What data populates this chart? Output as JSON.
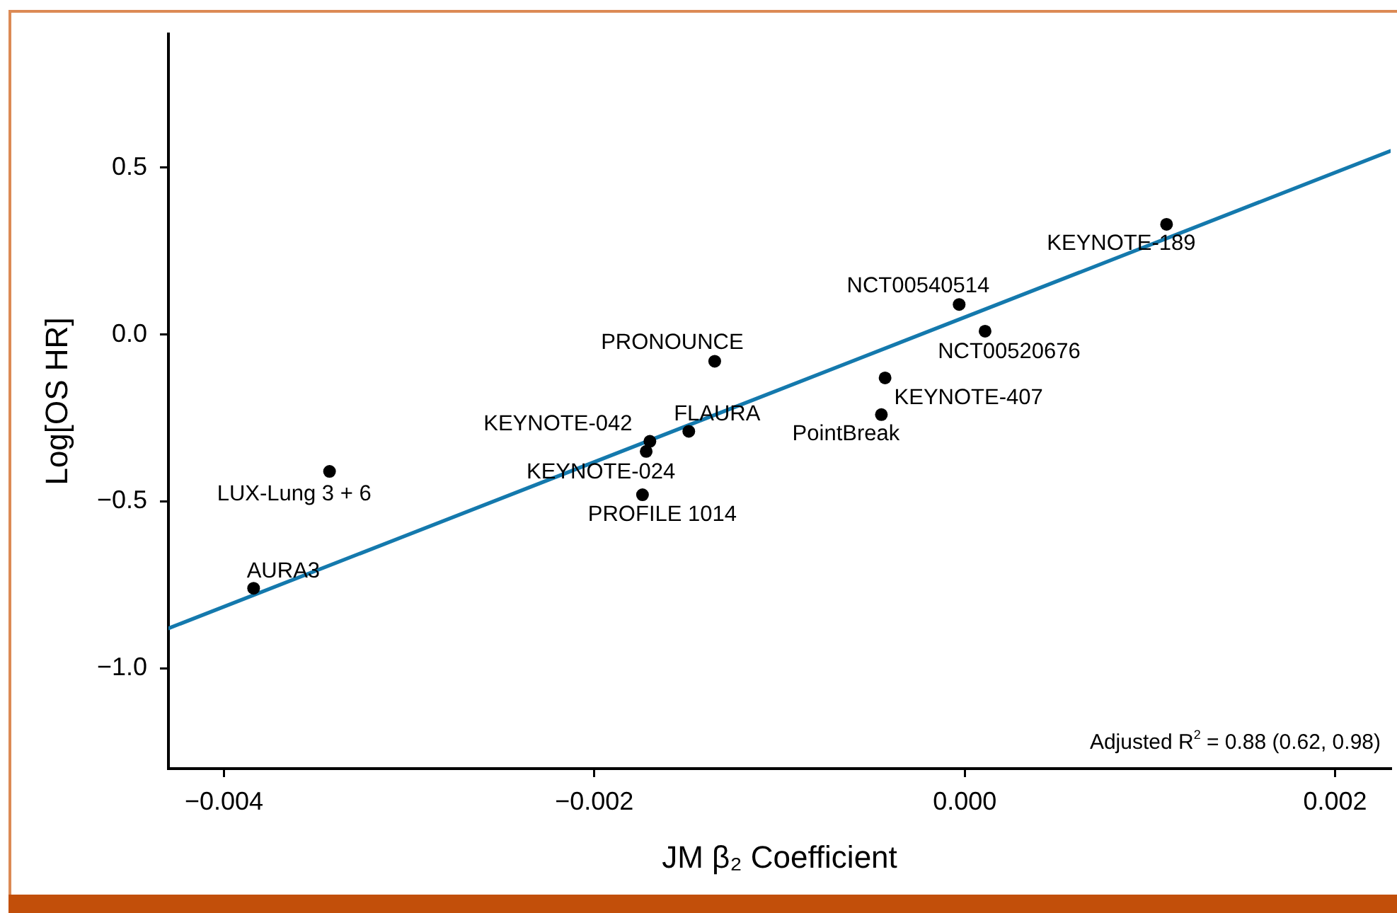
{
  "chart_data": {
    "type": "scatter",
    "xlabel": "JM β₂ Coefficient",
    "ylabel": "Log[OS HR]",
    "xlim": [
      -0.0043,
      0.0023
    ],
    "ylim": [
      -1.3,
      0.9
    ],
    "xticks": [
      {
        "value": -0.004,
        "label": "−0.004"
      },
      {
        "value": -0.002,
        "label": "−0.002"
      },
      {
        "value": 0,
        "label": "0.000"
      },
      0.002
    ],
    "yticks": [
      {
        "value": -1,
        "label": "−1.0"
      },
      {
        "value": -0.5,
        "label": "−0.5"
      },
      {
        "value": 0,
        "label": "0.0"
      },
      0.5
    ],
    "series": [
      {
        "type": "scatter",
        "color": "#000000",
        "marker": "circle",
        "x": [
          -0.00384,
          -0.00343,
          -0.0017,
          -0.00172,
          -0.00149,
          -0.00174,
          -0.00135,
          -3e-05,
          0.00011,
          -0.00043,
          -0.00045,
          0.00109
        ],
        "values": [
          -0.76,
          -0.41,
          -0.32,
          -0.35,
          -0.29,
          -0.48,
          -0.08,
          0.09,
          0.01,
          -0.13,
          -0.24,
          0.33
        ]
      },
      {
        "type": "line",
        "color": "#1479ad",
        "x": [
          -0.0043,
          0.0023
        ],
        "values": [
          -0.88,
          0.55
        ]
      }
    ],
    "annotations": [
      {
        "text": "AURA3",
        "x": -0.00384,
        "y": -0.76
      },
      {
        "text": "LUX-Lung 3 + 6",
        "x": -0.00343,
        "y": -0.41
      },
      {
        "text": "KEYNOTE-042",
        "x": -0.0017,
        "y": -0.32
      },
      {
        "text": "KEYNOTE-024",
        "x": -0.00172,
        "y": -0.35
      },
      {
        "text": "FLAURA",
        "x": -0.00149,
        "y": -0.29
      },
      {
        "text": "PROFILE 1014",
        "x": -0.00174,
        "y": -0.48
      },
      {
        "text": "PRONOUNCE",
        "x": -0.00135,
        "y": -0.08
      },
      {
        "text": "NCT00540514",
        "x": -3e-05,
        "y": 0.09
      },
      {
        "text": "NCT00520676",
        "x": 0.00011,
        "y": 0.01
      },
      {
        "text": "KEYNOTE-407",
        "x": -0.00043,
        "y": -0.13
      },
      {
        "text": "PointBreak",
        "x": -0.00045,
        "y": -0.24
      },
      {
        "text": "KEYNOTE-189",
        "x": 0.00109,
        "y": 0.33
      },
      "Adjusted R$^{2}$ = 0.88 (0.62, 0.98)"
    ]
  }
}
